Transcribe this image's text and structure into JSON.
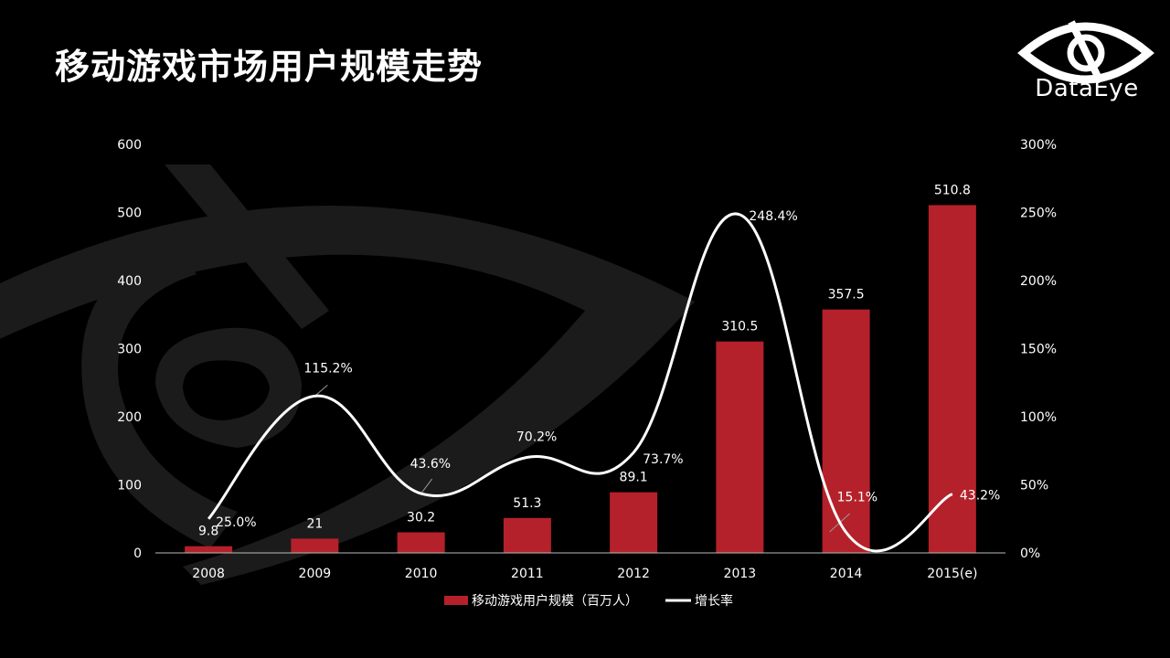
{
  "page": {
    "title": "移动游戏市场用户规模走势",
    "logo_text": "DataEye"
  },
  "colors": {
    "background": "#000000",
    "bar": "#b5212a",
    "line": "#ffffff",
    "watermark": "#1c1c1c"
  },
  "chart_data": {
    "type": "bar",
    "title": "移动游戏市场用户规模走势",
    "categories": [
      "2008",
      "2009",
      "2010",
      "2011",
      "2012",
      "2013",
      "2014",
      "2015(e)"
    ],
    "series": [
      {
        "name": "移动游戏用户规模（百万人）",
        "type": "bar",
        "axis": "left",
        "values": [
          9.8,
          21,
          30.2,
          51.3,
          89.1,
          310.5,
          357.5,
          510.8
        ],
        "labels": [
          "9.8",
          "21",
          "30.2",
          "51.3",
          "89.1",
          "310.5",
          "357.5",
          "510.8"
        ]
      },
      {
        "name": "增长率",
        "type": "line",
        "axis": "right",
        "values": [
          25.0,
          115.2,
          43.6,
          70.2,
          73.7,
          248.4,
          15.1,
          43.2
        ],
        "labels": [
          "25.0%",
          "115.2%",
          "43.6%",
          "70.2%",
          "73.7%",
          "248.4%",
          "15.1%",
          "43.2%"
        ]
      }
    ],
    "y_left": {
      "min": 0,
      "max": 600,
      "ticks": [
        "0",
        "100",
        "200",
        "300",
        "400",
        "500",
        "600"
      ]
    },
    "y_right": {
      "min": 0,
      "max": 300,
      "ticks": [
        "0%",
        "50%",
        "100%",
        "150%",
        "200%",
        "250%",
        "300%"
      ]
    },
    "grid": false,
    "legend": "bottom"
  }
}
